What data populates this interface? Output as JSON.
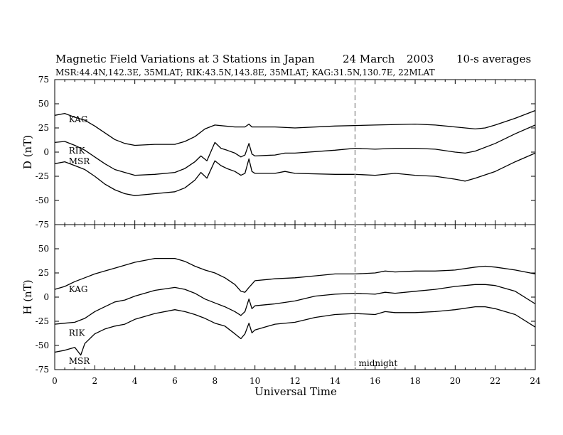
{
  "chart_data": {
    "type": "line",
    "title": "Magnetic Field Variations at 3 Stations in Japan",
    "date": "24  March",
    "year": "2003",
    "averaging": "10-s averages",
    "subtitle": "MSR:44.4N,142.3E, 35MLAT;   RIK:43.5N,143.8E, 35MLAT;   KAG:31.5N,130.7E, 22MLAT",
    "xlabel": "Universal Time",
    "xlim": [
      0,
      24
    ],
    "xticks": [
      0,
      2,
      4,
      6,
      8,
      10,
      12,
      14,
      16,
      18,
      20,
      22,
      24
    ],
    "midnight_marker": {
      "x": 15,
      "label": "midnight"
    },
    "panels": [
      {
        "id": "D",
        "ylabel": "D (nT)",
        "ylim": [
          -75,
          75
        ],
        "yticks": [
          75,
          50,
          25,
          0,
          -25,
          -50,
          -75
        ],
        "series": [
          {
            "name": "KAG",
            "label_at": [
              0.7,
              34
            ],
            "points": [
              [
                0,
                38
              ],
              [
                0.5,
                40
              ],
              [
                1,
                36
              ],
              [
                1.5,
                33
              ],
              [
                2,
                27
              ],
              [
                2.5,
                20
              ],
              [
                3,
                13
              ],
              [
                3.5,
                9
              ],
              [
                4,
                7
              ],
              [
                5,
                8
              ],
              [
                6,
                8
              ],
              [
                6.5,
                11
              ],
              [
                7,
                16
              ],
              [
                7.5,
                24
              ],
              [
                8,
                28
              ],
              [
                8.5,
                27
              ],
              [
                9,
                26
              ],
              [
                9.5,
                26
              ],
              [
                9.7,
                29
              ],
              [
                9.85,
                26
              ],
              [
                10,
                26
              ],
              [
                11,
                26
              ],
              [
                12,
                25
              ],
              [
                14,
                27
              ],
              [
                16,
                28
              ],
              [
                18,
                29
              ],
              [
                19,
                28
              ],
              [
                20,
                26
              ],
              [
                21,
                24
              ],
              [
                21.5,
                25
              ],
              [
                22,
                28
              ],
              [
                23,
                35
              ],
              [
                24,
                43
              ]
            ]
          },
          {
            "name": "RIK",
            "label_at": [
              0.7,
              1.5
            ],
            "points": [
              [
                0,
                10
              ],
              [
                0.5,
                11
              ],
              [
                1,
                7
              ],
              [
                1.5,
                2
              ],
              [
                2,
                -5
              ],
              [
                2.5,
                -12
              ],
              [
                3,
                -18
              ],
              [
                3.5,
                -21
              ],
              [
                4,
                -24
              ],
              [
                5,
                -23
              ],
              [
                6,
                -21
              ],
              [
                6.5,
                -17
              ],
              [
                7,
                -10
              ],
              [
                7.3,
                -4
              ],
              [
                7.6,
                -9
              ],
              [
                8,
                10
              ],
              [
                8.3,
                4
              ],
              [
                8.6,
                2
              ],
              [
                9,
                -1
              ],
              [
                9.3,
                -5
              ],
              [
                9.5,
                -3
              ],
              [
                9.7,
                9
              ],
              [
                9.85,
                -2
              ],
              [
                10,
                -4
              ],
              [
                11,
                -3
              ],
              [
                11.5,
                -1
              ],
              [
                12,
                -1
              ],
              [
                14,
                2
              ],
              [
                15,
                4
              ],
              [
                16,
                3
              ],
              [
                17,
                4
              ],
              [
                18,
                4
              ],
              [
                19,
                3
              ],
              [
                20,
                0
              ],
              [
                20.5,
                -1
              ],
              [
                21,
                1
              ],
              [
                22,
                9
              ],
              [
                23,
                19
              ],
              [
                24,
                28
              ]
            ]
          },
          {
            "name": "MSR",
            "label_at": [
              0.7,
              -9.5
            ],
            "points": [
              [
                0,
                -12
              ],
              [
                0.5,
                -10
              ],
              [
                1,
                -14
              ],
              [
                1.5,
                -18
              ],
              [
                2,
                -25
              ],
              [
                2.5,
                -33
              ],
              [
                3,
                -39
              ],
              [
                3.5,
                -43
              ],
              [
                4,
                -45
              ],
              [
                5,
                -43
              ],
              [
                6,
                -41
              ],
              [
                6.5,
                -37
              ],
              [
                7,
                -29
              ],
              [
                7.3,
                -21
              ],
              [
                7.6,
                -27
              ],
              [
                8,
                -9
              ],
              [
                8.3,
                -14
              ],
              [
                8.6,
                -17
              ],
              [
                9,
                -20
              ],
              [
                9.3,
                -24
              ],
              [
                9.5,
                -22
              ],
              [
                9.7,
                -7
              ],
              [
                9.85,
                -20
              ],
              [
                10,
                -22
              ],
              [
                11,
                -22
              ],
              [
                11.5,
                -20
              ],
              [
                12,
                -22
              ],
              [
                14,
                -23
              ],
              [
                15,
                -23
              ],
              [
                16,
                -24
              ],
              [
                17,
                -22
              ],
              [
                18,
                -24
              ],
              [
                19,
                -25
              ],
              [
                20,
                -28
              ],
              [
                20.5,
                -30
              ],
              [
                21,
                -27
              ],
              [
                22,
                -20
              ],
              [
                23,
                -10
              ],
              [
                24,
                -1
              ]
            ]
          }
        ]
      },
      {
        "id": "H",
        "ylabel": "H (nT)",
        "ylim": [
          -75,
          75
        ],
        "yticks": [
          75,
          50,
          25,
          0,
          -25,
          -50,
          -75
        ],
        "series": [
          {
            "name": "KAG",
            "label_at": [
              0.7,
              8
            ],
            "points": [
              [
                0,
                8
              ],
              [
                0.5,
                11
              ],
              [
                1,
                16
              ],
              [
                1.5,
                20
              ],
              [
                2,
                24
              ],
              [
                2.5,
                27
              ],
              [
                3,
                30
              ],
              [
                3.5,
                33
              ],
              [
                4,
                36
              ],
              [
                5,
                40
              ],
              [
                6,
                40
              ],
              [
                6.5,
                37
              ],
              [
                7,
                32
              ],
              [
                7.5,
                28
              ],
              [
                8,
                25
              ],
              [
                8.5,
                20
              ],
              [
                9,
                13
              ],
              [
                9.3,
                6
              ],
              [
                9.5,
                5
              ],
              [
                9.7,
                10
              ],
              [
                10,
                17
              ],
              [
                11,
                19
              ],
              [
                12,
                20
              ],
              [
                13,
                22
              ],
              [
                14,
                24
              ],
              [
                15,
                24
              ],
              [
                16,
                25
              ],
              [
                16.5,
                27
              ],
              [
                17,
                26
              ],
              [
                18,
                27
              ],
              [
                19,
                27
              ],
              [
                20,
                28
              ],
              [
                21,
                31
              ],
              [
                21.5,
                32
              ],
              [
                22,
                31
              ],
              [
                23,
                28
              ],
              [
                24,
                24
              ]
            ]
          },
          {
            "name": "RIK",
            "label_at": [
              0.7,
              -37
            ],
            "points": [
              [
                0,
                -28
              ],
              [
                0.5,
                -27
              ],
              [
                1,
                -26
              ],
              [
                1.5,
                -22
              ],
              [
                2,
                -15
              ],
              [
                2.5,
                -10
              ],
              [
                3,
                -5
              ],
              [
                3.5,
                -3
              ],
              [
                4,
                1
              ],
              [
                5,
                7
              ],
              [
                6,
                10
              ],
              [
                6.5,
                8
              ],
              [
                7,
                4
              ],
              [
                7.5,
                -2
              ],
              [
                8,
                -6
              ],
              [
                8.5,
                -10
              ],
              [
                9,
                -15
              ],
              [
                9.3,
                -19
              ],
              [
                9.5,
                -15
              ],
              [
                9.7,
                -2
              ],
              [
                9.85,
                -12
              ],
              [
                10,
                -9
              ],
              [
                11,
                -7
              ],
              [
                12,
                -4
              ],
              [
                13,
                1
              ],
              [
                14,
                3
              ],
              [
                15,
                4
              ],
              [
                16,
                3
              ],
              [
                16.5,
                5
              ],
              [
                17,
                4
              ],
              [
                18,
                6
              ],
              [
                19,
                8
              ],
              [
                20,
                11
              ],
              [
                21,
                13
              ],
              [
                21.5,
                13
              ],
              [
                22,
                12
              ],
              [
                23,
                6
              ],
              [
                24,
                -7
              ]
            ]
          },
          {
            "name": "MSR",
            "label_at": [
              0.7,
              -66
            ],
            "points": [
              [
                0,
                -57
              ],
              [
                0.5,
                -55
              ],
              [
                1,
                -52
              ],
              [
                1.3,
                -60
              ],
              [
                1.5,
                -48
              ],
              [
                2,
                -38
              ],
              [
                2.5,
                -33
              ],
              [
                3,
                -30
              ],
              [
                3.5,
                -28
              ],
              [
                4,
                -23
              ],
              [
                5,
                -17
              ],
              [
                6,
                -13
              ],
              [
                6.5,
                -15
              ],
              [
                7,
                -18
              ],
              [
                7.5,
                -22
              ],
              [
                8,
                -27
              ],
              [
                8.5,
                -30
              ],
              [
                9,
                -38
              ],
              [
                9.3,
                -43
              ],
              [
                9.5,
                -38
              ],
              [
                9.7,
                -27
              ],
              [
                9.85,
                -37
              ],
              [
                10,
                -34
              ],
              [
                11,
                -28
              ],
              [
                12,
                -26
              ],
              [
                13,
                -21
              ],
              [
                14,
                -18
              ],
              [
                15,
                -17
              ],
              [
                16,
                -18
              ],
              [
                16.5,
                -15
              ],
              [
                17,
                -16
              ],
              [
                18,
                -16
              ],
              [
                19,
                -15
              ],
              [
                20,
                -13
              ],
              [
                21,
                -10
              ],
              [
                21.5,
                -10
              ],
              [
                22,
                -12
              ],
              [
                23,
                -18
              ],
              [
                24,
                -31
              ]
            ]
          }
        ]
      }
    ]
  }
}
